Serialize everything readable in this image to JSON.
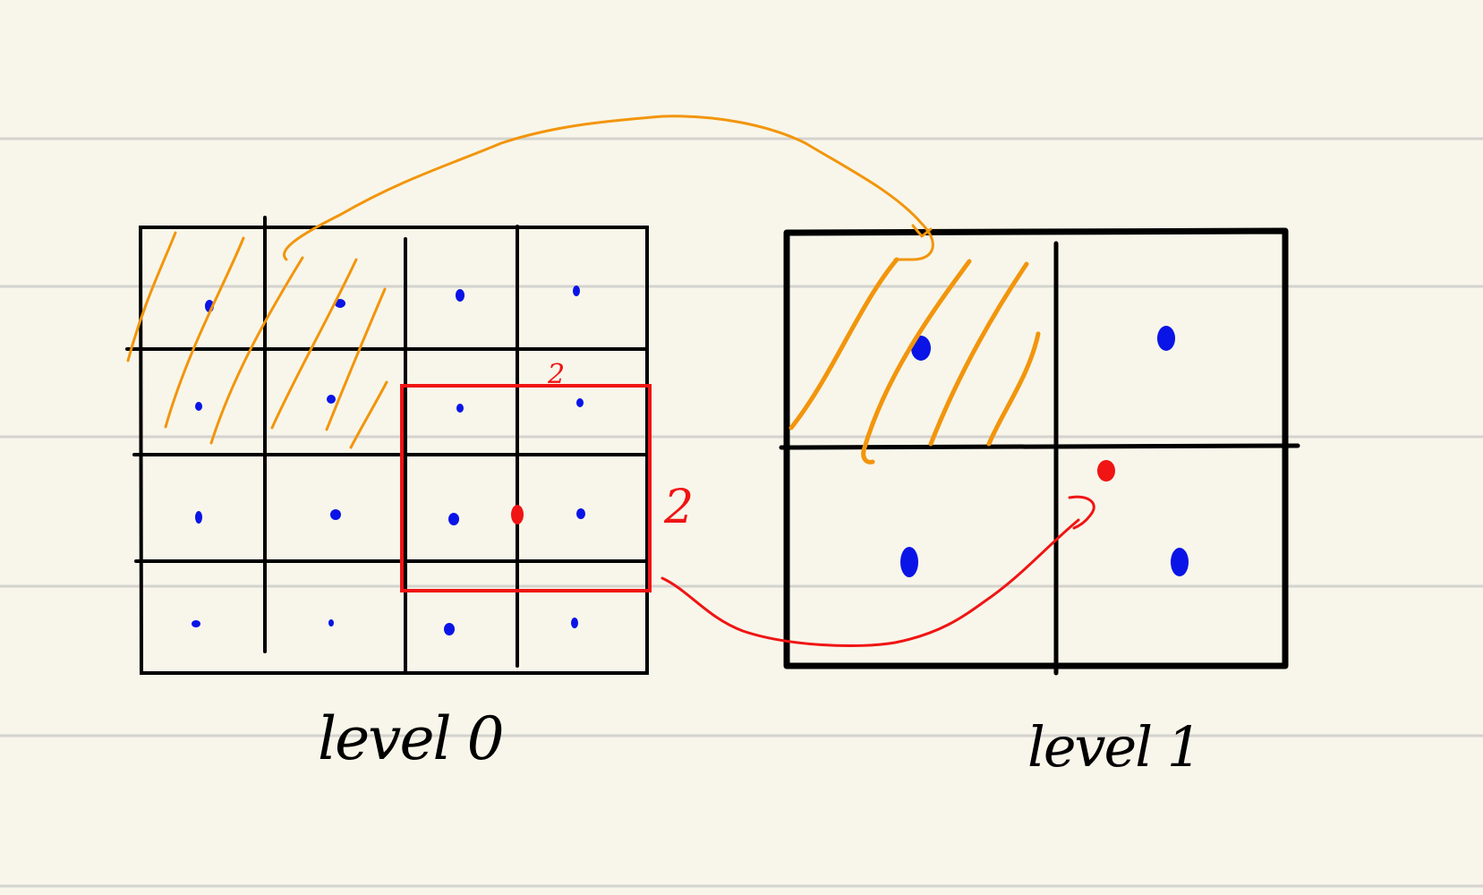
{
  "page": {
    "background": "#f8f6ea",
    "rule_color": "#d3d3cf",
    "ink": "#000000",
    "accent_orange": "#f2950c",
    "accent_red": "#f01414",
    "dot_blue": "#0a14e6"
  },
  "levels": [
    {
      "label": "level 0",
      "grid": "4x4"
    },
    {
      "label": "level 1",
      "grid": "2x2"
    }
  ],
  "annotations": {
    "window_width": "2",
    "window_height": "2"
  }
}
